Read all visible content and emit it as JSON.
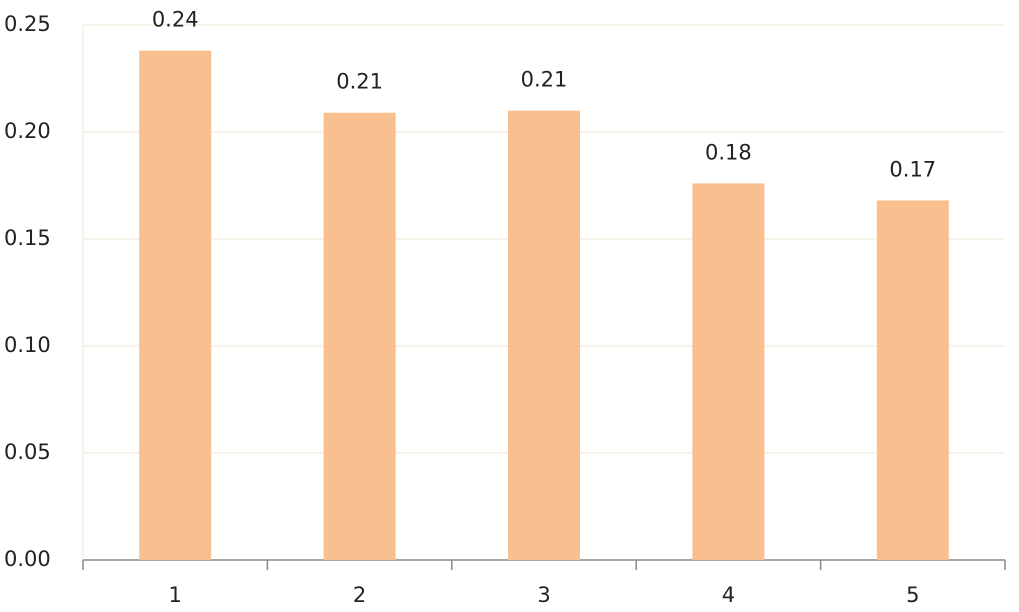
{
  "chart_data": {
    "type": "bar",
    "categories": [
      "1",
      "2",
      "3",
      "4",
      "5"
    ],
    "values": [
      0.238,
      0.209,
      0.21,
      0.176,
      0.168
    ],
    "value_labels": [
      "0.24",
      "0.21",
      "0.21",
      "0.18",
      "0.17"
    ],
    "color": "#f9bf8f",
    "ylim": [
      0,
      0.25
    ],
    "yticks": [
      {
        "value": 0,
        "label": "0.00"
      },
      0.05,
      {
        "value": 0.1,
        "label": "0.10"
      },
      0.15,
      {
        "value": 0.2,
        "label": "0.20"
      },
      0.25
    ],
    "grid": true
  }
}
